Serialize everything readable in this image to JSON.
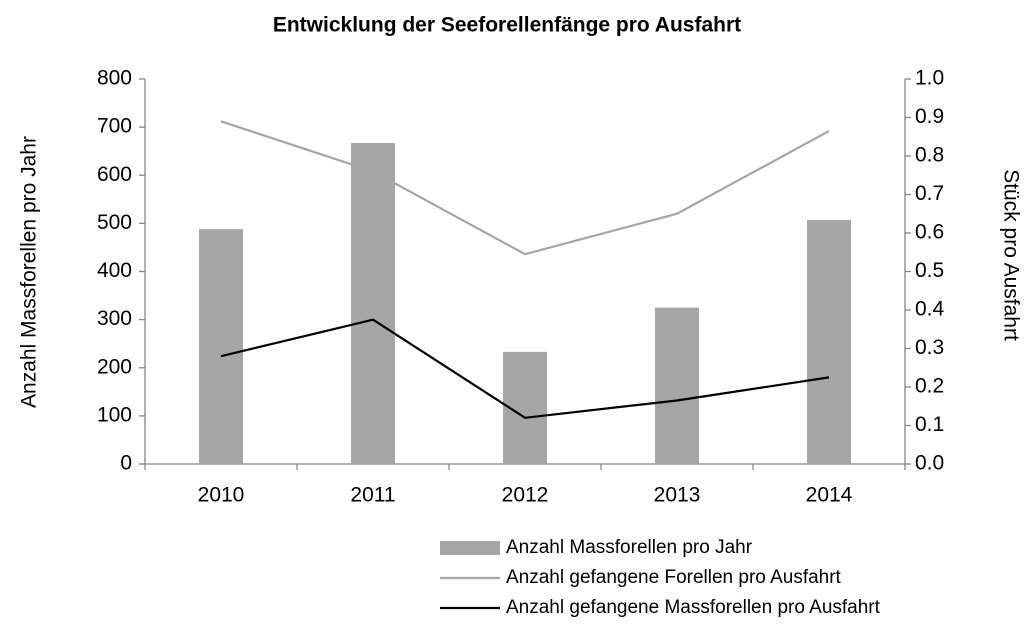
{
  "chart_data": {
    "type": "bar-line",
    "title": "Entwicklung der Seeforellenfänge pro Ausfahrt",
    "y_label": "Anzahl Massforellen pro Jahr",
    "y2_label": "Stück pro Ausfahrt",
    "categories": [
      "2010",
      "2011",
      "2012",
      "2013",
      "2014"
    ],
    "ylim": [
      0,
      800
    ],
    "yticks": [
      0,
      100,
      200,
      300,
      400,
      500,
      600,
      700,
      800
    ],
    "y2lim": [
      0,
      1
    ],
    "y2ticks": [
      {
        "value": 0,
        "label": "0.0"
      },
      0.1,
      0.2,
      0.3,
      0.4,
      0.5,
      0.6,
      0.7,
      0.8,
      0.9,
      {
        "value": 1,
        "label": "1.0"
      }
    ],
    "series": [
      {
        "name": "Anzahl Massforellen pro Jahr",
        "type": "bar",
        "color": "#a6a6a6",
        "values": [
          488,
          667,
          233,
          325,
          507
        ]
      },
      {
        "name": "Anzahl gefangene Forellen pro Ausfahrt",
        "type": "line",
        "axis": "y2",
        "color": "#a6a6a6",
        "values": [
          0.89,
          0.76,
          0.545,
          0.65,
          0.865
        ]
      },
      {
        "name": "Anzahl gefangene Massforellen pro Ausfahrt",
        "type": "line",
        "axis": "y2",
        "color": "#000000",
        "values": [
          0.28,
          0.375,
          0.12,
          0.165,
          0.225
        ]
      }
    ]
  }
}
